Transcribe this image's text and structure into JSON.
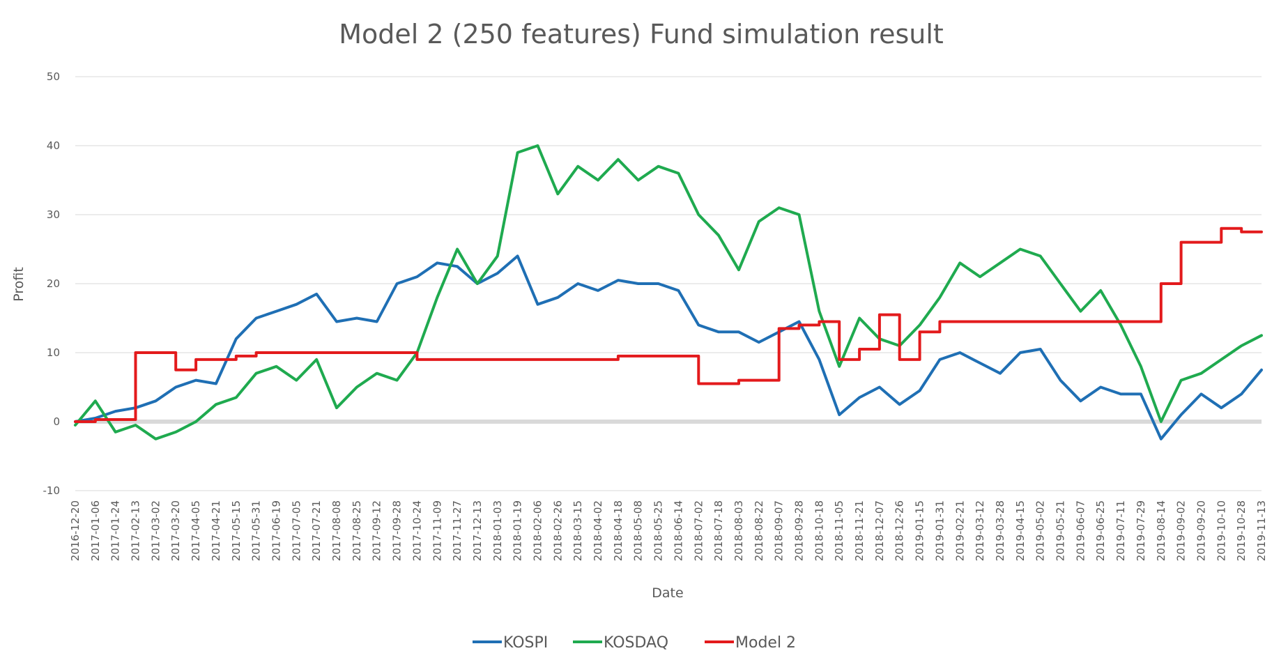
{
  "chart_data": {
    "type": "line",
    "title": "Model 2 (250 features) Fund simulation result",
    "xlabel": "Date",
    "ylabel": "Profit",
    "ylim": [
      -10,
      50
    ],
    "yticks": [
      "-10",
      "0",
      "10",
      "20",
      "30",
      "40",
      "50"
    ],
    "grid": true,
    "legend_position": "bottom",
    "categories": [
      "2016-12-20",
      "2017-01-06",
      "2017-01-24",
      "2017-02-13",
      "2017-03-02",
      "2017-03-20",
      "2017-04-05",
      "2017-04-21",
      "2017-05-15",
      "2017-05-31",
      "2017-06-19",
      "2017-07-05",
      "2017-07-21",
      "2017-08-08",
      "2017-08-25",
      "2017-09-12",
      "2017-09-28",
      "2017-10-24",
      "2017-11-09",
      "2017-11-27",
      "2017-12-13",
      "2018-01-03",
      "2018-01-19",
      "2018-02-06",
      "2018-02-26",
      "2018-03-15",
      "2018-04-02",
      "2018-04-18",
      "2018-05-08",
      "2018-05-25",
      "2018-06-14",
      "2018-07-02",
      "2018-07-18",
      "2018-08-03",
      "2018-08-22",
      "2018-09-07",
      "2018-09-28",
      "2018-10-18",
      "2018-11-05",
      "2018-11-21",
      "2018-12-07",
      "2018-12-26",
      "2019-01-15",
      "2019-01-31",
      "2019-02-21",
      "2019-03-12",
      "2019-03-28",
      "2019-04-15",
      "2019-05-02",
      "2019-05-21",
      "2019-06-07",
      "2019-06-25",
      "2019-07-11",
      "2019-07-29",
      "2019-08-14",
      "2019-09-02",
      "2019-09-20",
      "2019-10-10",
      "2019-10-28",
      "2019-11-13"
    ],
    "series": [
      {
        "name": "KOSPI",
        "color": "#1f6fb4",
        "values": [
          0,
          0.5,
          1.5,
          2,
          3,
          5,
          6,
          5.5,
          12,
          15,
          16,
          17,
          18.5,
          14.5,
          15,
          14.5,
          20,
          21,
          23,
          22.5,
          20,
          21.5,
          24,
          17,
          18,
          20,
          19,
          20.5,
          20,
          20,
          19,
          14,
          13,
          13,
          11.5,
          13,
          14.5,
          9,
          1,
          3.5,
          5,
          2.5,
          4.5,
          9,
          10,
          8.5,
          7,
          10,
          10.5,
          6,
          3,
          5,
          4,
          4,
          -2.5,
          1,
          4,
          2,
          4,
          7.5
        ]
      },
      {
        "name": "KOSDAQ",
        "color": "#1faa4f",
        "values": [
          -0.5,
          3,
          -1.5,
          -0.5,
          -2.5,
          -1.5,
          0,
          2.5,
          3.5,
          7,
          8,
          6,
          9,
          2,
          5,
          7,
          6,
          10,
          18,
          25,
          20,
          24,
          39,
          40,
          33,
          37,
          35,
          38,
          35,
          37,
          36,
          30,
          27,
          22,
          29,
          31,
          30,
          16,
          8,
          15,
          12,
          11,
          14,
          18,
          23,
          21,
          23,
          25,
          24,
          20,
          16,
          19,
          14,
          8,
          0,
          6,
          7,
          9,
          11,
          12.5
        ]
      },
      {
        "name": "Model 2",
        "color": "#e31a1c",
        "values": [
          0,
          0.3,
          0.3,
          10,
          10,
          7.5,
          9,
          9,
          9.5,
          10,
          10,
          10,
          10,
          10,
          10,
          10,
          10,
          9,
          9,
          9,
          9,
          9,
          9,
          9,
          9,
          9,
          9,
          9.5,
          9.5,
          9.5,
          9.5,
          5.5,
          5.5,
          6,
          6,
          13.5,
          14,
          14.5,
          9,
          10.5,
          15.5,
          9,
          13,
          14.5,
          14.5,
          14.5,
          14.5,
          14.5,
          14.5,
          14.5,
          14.5,
          14.5,
          14.5,
          14.5,
          20,
          26,
          26,
          28,
          27.5,
          27.5
        ]
      }
    ]
  }
}
